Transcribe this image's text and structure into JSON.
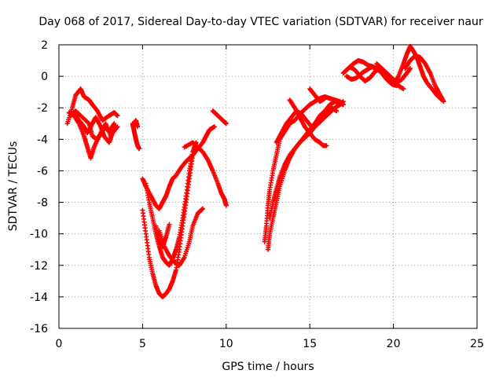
{
  "chart_data": {
    "type": "scatter",
    "title": "Day 068 of 2017, Sidereal Day-to-day VTEC variation (SDTVAR) for receiver naur",
    "xlabel": "GPS time / hours",
    "ylabel": "SDTVAR / TECUs",
    "xlim": [
      0,
      25
    ],
    "ylim": [
      -16,
      2
    ],
    "xticks": [
      "0",
      "5",
      "10",
      "15",
      "20",
      "25"
    ],
    "yticks": [
      "2",
      "0",
      "-2",
      "-4",
      "-6",
      "-8",
      "-10",
      "-12",
      "-14",
      "-16"
    ],
    "grid": true,
    "marker": "plus",
    "color": "#ff0000",
    "tracks": [
      {
        "x": [
          0.5,
          0.8,
          1.0,
          1.3,
          1.5,
          1.8,
          2.0,
          2.3,
          2.6,
          3.0,
          3.3,
          3.5
        ],
        "y": [
          -3.0,
          -2.0,
          -1.2,
          -0.8,
          -1.3,
          -1.5,
          -1.8,
          -2.2,
          -2.8,
          -2.5,
          -2.3,
          -2.5
        ]
      },
      {
        "x": [
          0.6,
          0.9,
          1.2,
          1.5,
          1.7,
          1.9,
          2.1,
          2.4,
          2.7,
          3.0,
          3.3
        ],
        "y": [
          -2.3,
          -2.5,
          -3.0,
          -3.8,
          -4.5,
          -5.2,
          -4.5,
          -3.8,
          -3.2,
          -3.5,
          -3.0
        ]
      },
      {
        "x": [
          0.7,
          1.0,
          1.4,
          1.8,
          2.0,
          2.3,
          2.6,
          2.8,
          3.1,
          3.4
        ],
        "y": [
          -2.5,
          -2.2,
          -2.6,
          -3.0,
          -3.8,
          -4.0,
          -3.5,
          -3.0,
          -3.8,
          -3.2
        ]
      },
      {
        "x": [
          0.9,
          1.2,
          1.5,
          1.7,
          2.0,
          2.2,
          2.5,
          2.7,
          3.0,
          3.2,
          3.5
        ],
        "y": [
          -2.3,
          -2.8,
          -3.2,
          -3.6,
          -3.0,
          -2.6,
          -3.2,
          -3.8,
          -4.2,
          -3.6,
          -3.2
        ]
      },
      {
        "x": [
          4.4,
          4.5,
          4.6,
          4.7,
          4.8
        ],
        "y": [
          -3.0,
          -3.5,
          -4.0,
          -4.4,
          -4.6
        ]
      },
      {
        "x": [
          4.5,
          4.6,
          4.7
        ],
        "y": [
          -3.0,
          -2.8,
          -3.2
        ]
      },
      {
        "x": [
          5.0,
          5.2,
          5.5,
          5.8,
          6.0,
          6.2,
          6.4,
          6.6,
          6.8,
          7.0,
          7.3,
          7.6,
          8.0,
          8.3,
          8.6,
          8.8,
          9.0,
          9.3
        ],
        "y": [
          -6.5,
          -7.0,
          -7.6,
          -8.2,
          -8.4,
          -8.0,
          -7.6,
          -7.0,
          -6.5,
          -6.3,
          -5.8,
          -5.4,
          -5.0,
          -4.6,
          -4.2,
          -3.8,
          -3.4,
          -3.2
        ]
      },
      {
        "x": [
          5.0,
          5.2,
          5.4,
          5.6,
          5.8,
          6.0,
          6.2,
          6.4,
          6.6,
          6.8,
          7.0,
          7.2,
          7.4,
          7.6,
          7.8,
          8.0
        ],
        "y": [
          -8.5,
          -10.0,
          -11.5,
          -12.5,
          -13.3,
          -13.8,
          -14.0,
          -13.8,
          -13.5,
          -13.0,
          -12.3,
          -11.0,
          -9.5,
          -8.0,
          -6.5,
          -5.0
        ]
      },
      {
        "x": [
          5.2,
          5.4,
          5.6,
          5.8,
          6.0,
          6.2,
          6.4,
          6.6,
          6.8,
          7.0,
          7.2,
          7.4,
          7.6,
          7.8,
          8.0,
          8.2
        ],
        "y": [
          -6.8,
          -8.0,
          -9.0,
          -10.0,
          -10.8,
          -11.5,
          -11.8,
          -12.0,
          -11.6,
          -11.0,
          -10.2,
          -9.0,
          -7.6,
          -6.0,
          -4.8,
          -4.2
        ]
      },
      {
        "x": [
          5.8,
          6.0,
          6.2,
          6.4,
          6.6
        ],
        "y": [
          -9.5,
          -10.5,
          -10.8,
          -10.2,
          -9.4
        ]
      },
      {
        "x": [
          6.0,
          6.3,
          6.6,
          6.9,
          7.2,
          7.5,
          7.8,
          8.0,
          8.3,
          8.6
        ],
        "y": [
          -9.8,
          -10.8,
          -11.4,
          -11.8,
          -12.0,
          -11.5,
          -10.5,
          -9.5,
          -8.7,
          -8.4
        ]
      },
      {
        "x": [
          7.5,
          8.0,
          8.3,
          8.6,
          8.9,
          9.2,
          9.5,
          9.7,
          9.9,
          10.0
        ],
        "y": [
          -4.5,
          -4.2,
          -4.5,
          -4.8,
          -5.3,
          -6.0,
          -6.8,
          -7.4,
          -7.8,
          -8.2
        ]
      },
      {
        "x": [
          9.2,
          9.4,
          9.6,
          9.8,
          10.0
        ],
        "y": [
          -2.2,
          -2.4,
          -2.6,
          -2.8,
          -3.0
        ]
      },
      {
        "x": [
          12.3,
          12.4,
          12.5,
          12.6,
          12.8,
          13.0,
          13.2,
          13.5,
          13.8,
          14.1,
          14.4,
          14.7,
          15.0,
          15.3,
          15.6,
          15.9,
          16.2,
          16.5,
          16.8,
          17.0
        ],
        "y": [
          -10.5,
          -9.5,
          -8.2,
          -7.2,
          -6.0,
          -5.0,
          -4.0,
          -3.5,
          -3.0,
          -2.8,
          -2.4,
          -2.1,
          -1.8,
          -1.6,
          -1.4,
          -1.3,
          -1.4,
          -1.5,
          -1.6,
          -1.8
        ]
      },
      {
        "x": [
          12.5,
          12.6,
          12.8,
          13.0,
          13.2,
          13.5,
          13.8,
          14.1,
          14.4,
          14.7,
          15.0,
          15.3,
          15.6,
          15.9,
          16.2,
          16.5,
          16.8,
          17.0
        ],
        "y": [
          -11.0,
          -10.0,
          -9.0,
          -8.0,
          -7.0,
          -6.0,
          -5.2,
          -4.6,
          -4.2,
          -3.8,
          -3.4,
          -3.0,
          -2.5,
          -2.2,
          -1.8,
          -1.6,
          -1.7,
          -1.8
        ]
      },
      {
        "x": [
          12.6,
          12.8,
          13.0,
          13.2,
          13.5,
          13.8,
          14.1,
          14.4,
          14.7,
          15.0,
          15.3,
          15.6,
          15.9,
          16.2,
          16.5,
          16.8,
          17.0
        ],
        "y": [
          -9.0,
          -8.0,
          -7.2,
          -6.4,
          -5.6,
          -5.0,
          -4.6,
          -4.2,
          -3.9,
          -3.6,
          -3.2,
          -2.9,
          -2.6,
          -2.3,
          -2.0,
          -1.8,
          -1.6
        ]
      },
      {
        "x": [
          13.0,
          13.3,
          13.6,
          13.9,
          14.2,
          14.5,
          14.8,
          15.1,
          15.4,
          15.7,
          16.0,
          16.3,
          16.6
        ],
        "y": [
          -4.2,
          -3.6,
          -3.0,
          -2.6,
          -2.2,
          -2.4,
          -2.8,
          -3.2,
          -3.0,
          -2.6,
          -2.2,
          -2.0,
          -2.2
        ]
      },
      {
        "x": [
          13.8,
          14.1,
          14.4,
          14.7,
          15.0,
          15.3,
          15.6,
          15.8,
          16.0
        ],
        "y": [
          -1.5,
          -2.0,
          -2.6,
          -3.2,
          -3.6,
          -4.0,
          -4.2,
          -4.4,
          -4.4
        ]
      },
      {
        "x": [
          15.0,
          15.3,
          15.6,
          15.9
        ],
        "y": [
          -0.8,
          -1.2,
          -1.6,
          -1.4
        ]
      },
      {
        "x": [
          17.0,
          17.3,
          17.6,
          17.9,
          18.2,
          18.5,
          18.8,
          19.1,
          19.4,
          19.7,
          20.0,
          20.3,
          20.6
        ],
        "y": [
          0.2,
          0.5,
          0.8,
          1.0,
          0.9,
          0.7,
          0.6,
          0.4,
          0.2,
          0.0,
          -0.3,
          -0.6,
          -0.8
        ]
      },
      {
        "x": [
          17.2,
          17.5,
          17.8,
          18.1,
          18.4,
          18.7,
          19.0,
          19.3,
          19.6,
          19.9,
          20.2
        ],
        "y": [
          0.0,
          -0.2,
          -0.1,
          0.2,
          0.4,
          0.6,
          0.5,
          0.2,
          -0.2,
          -0.5,
          -0.6
        ]
      },
      {
        "x": [
          17.4,
          17.7,
          18.0,
          18.3,
          18.6,
          18.9,
          19.2
        ],
        "y": [
          0.6,
          0.4,
          0.0,
          -0.3,
          -0.1,
          0.3,
          0.5
        ]
      },
      {
        "x": [
          19.0,
          19.3,
          19.6,
          19.9,
          20.2,
          20.5,
          20.8,
          21.0
        ],
        "y": [
          0.8,
          0.5,
          0.2,
          -0.1,
          -0.4,
          -0.2,
          0.2,
          0.5
        ]
      },
      {
        "x": [
          20.0,
          20.3,
          20.6,
          20.8,
          21.0,
          21.2,
          21.4,
          21.6,
          21.8,
          22.0,
          22.3,
          22.6,
          22.9
        ],
        "y": [
          -0.5,
          0.0,
          0.8,
          1.4,
          1.9,
          1.6,
          1.2,
          0.6,
          0.0,
          -0.4,
          -0.8,
          -1.2,
          -1.5
        ]
      },
      {
        "x": [
          20.7,
          21.0,
          21.3,
          21.6,
          21.9,
          22.2,
          22.5,
          22.8,
          23.0
        ],
        "y": [
          0.5,
          1.0,
          1.3,
          1.2,
          0.8,
          0.2,
          -0.6,
          -1.2,
          -1.6
        ]
      }
    ]
  }
}
